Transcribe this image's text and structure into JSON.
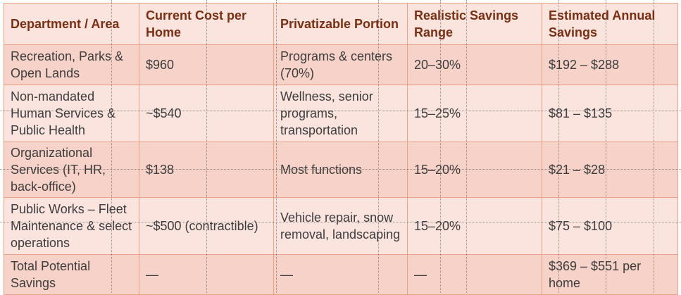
{
  "table": {
    "headers": [
      "Department / Area",
      "Current Cost per Home",
      "Privatizable Portion",
      "Realistic Savings Range",
      "Estimated Annual Savings"
    ],
    "rows": [
      [
        "Recreation, Parks & Open Lands",
        "$960",
        "Programs & centers (70%)",
        "20–30%",
        "$192 – $288"
      ],
      [
        "Non-mandated Human Services & Public Health",
        "~$540",
        "Wellness, senior programs, transportation",
        "15–25%",
        "$81 – $135"
      ],
      [
        "Organizational Services (IT, HR, back-office)",
        "$138",
        "Most functions",
        "15–20%",
        "$21 – $28"
      ],
      [
        "Public Works – Fleet Maintenance & select operations",
        "~$500 (contractible)",
        "Vehicle repair, snow removal, landscaping",
        "15–20%",
        "$75 – $100"
      ],
      [
        "Total Potential Savings",
        "—",
        "—",
        "—",
        "$369 – $551 per home"
      ]
    ]
  },
  "colors": {
    "header_text": "#7a2e12",
    "row_light": "#fbe4de",
    "row_dark": "#f6d2c8",
    "border": "#e8a183"
  }
}
